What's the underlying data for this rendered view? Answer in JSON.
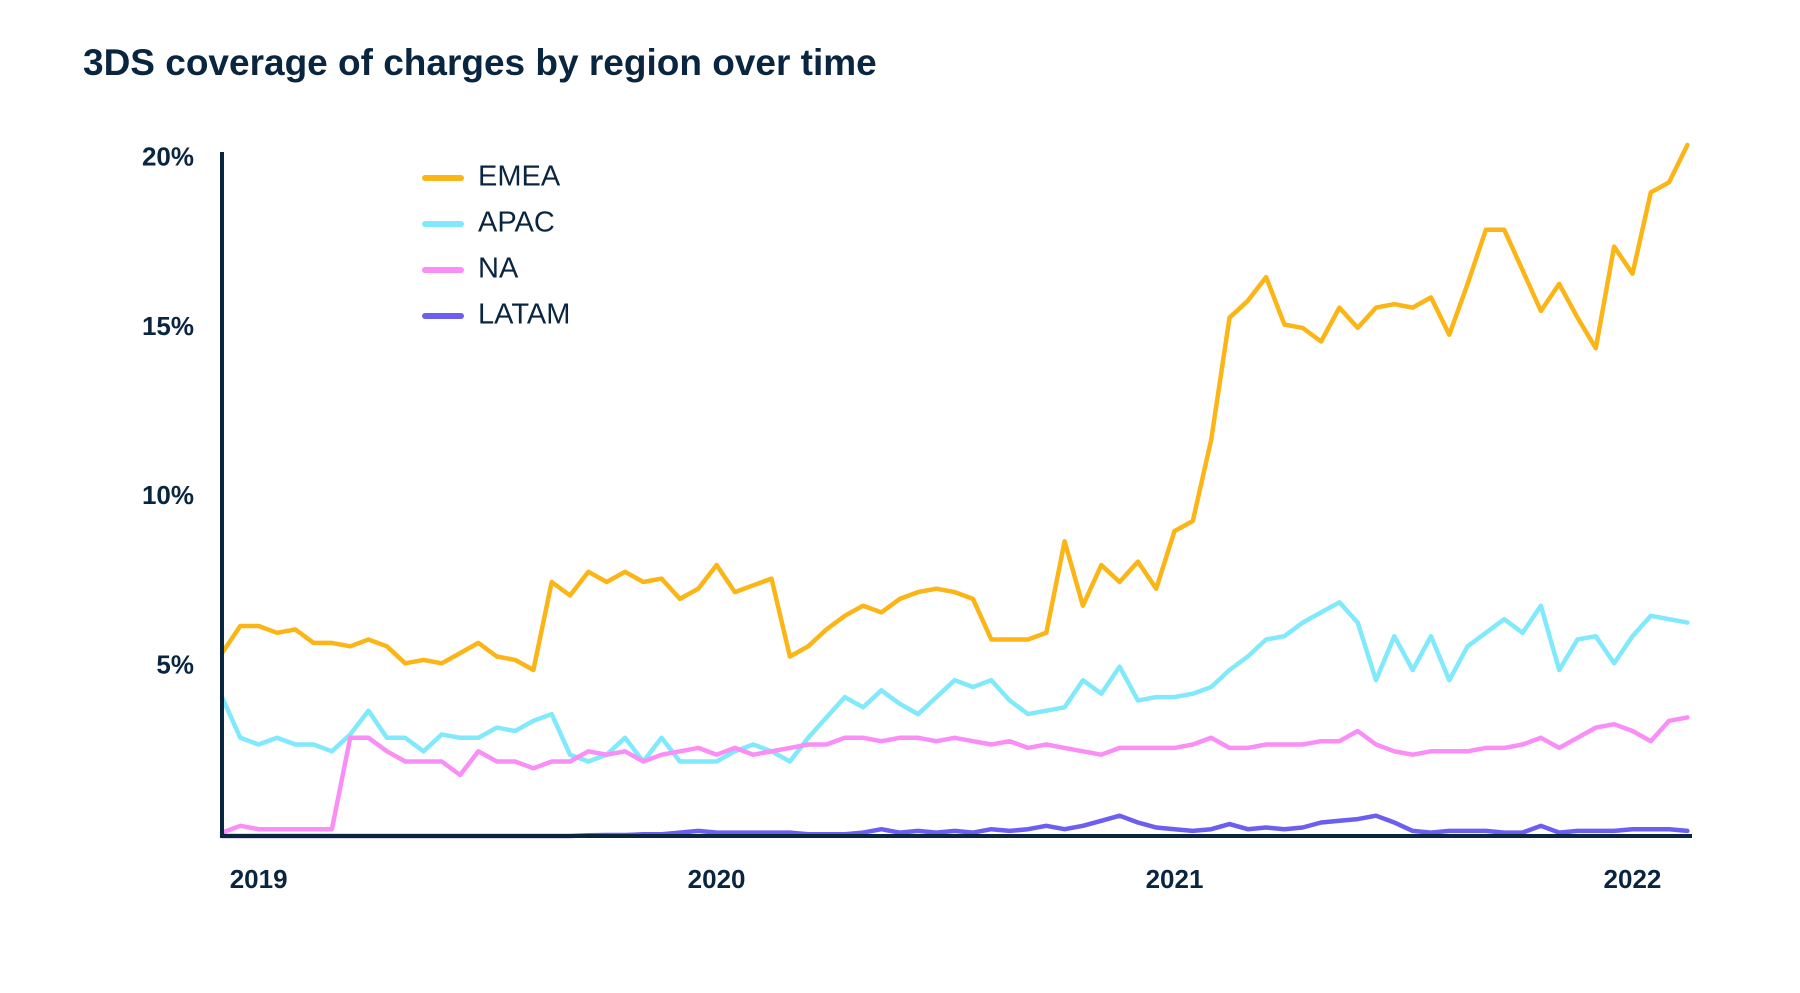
{
  "chart_data": {
    "type": "line",
    "title": "3DS coverage of charges by region over time",
    "x": [
      2018.92,
      2018.96,
      2019.0,
      2019.04,
      2019.08,
      2019.12,
      2019.16,
      2019.2,
      2019.24,
      2019.28,
      2019.32,
      2019.36,
      2019.4,
      2019.44,
      2019.48,
      2019.52,
      2019.56,
      2019.6,
      2019.64,
      2019.68,
      2019.72,
      2019.76,
      2019.8,
      2019.84,
      2019.88,
      2019.92,
      2019.96,
      2020.0,
      2020.04,
      2020.08,
      2020.12,
      2020.16,
      2020.2,
      2020.24,
      2020.28,
      2020.32,
      2020.36,
      2020.4,
      2020.44,
      2020.48,
      2020.52,
      2020.56,
      2020.6,
      2020.64,
      2020.68,
      2020.72,
      2020.76,
      2020.8,
      2020.84,
      2020.88,
      2020.92,
      2020.96,
      2021.0,
      2021.04,
      2021.08,
      2021.12,
      2021.16,
      2021.2,
      2021.24,
      2021.28,
      2021.32,
      2021.36,
      2021.4,
      2021.44,
      2021.48,
      2021.52,
      2021.56,
      2021.6,
      2021.64,
      2021.68,
      2021.72,
      2021.76,
      2021.8,
      2021.84,
      2021.88,
      2021.92,
      2021.96,
      2022.0,
      2022.04,
      2022.08,
      2022.12
    ],
    "series": [
      {
        "name": "EMEA",
        "color": "#fbb516",
        "values": [
          5.4,
          6.2,
          6.2,
          6.0,
          6.1,
          5.7,
          5.7,
          5.6,
          5.8,
          5.6,
          5.1,
          5.2,
          5.1,
          5.4,
          5.7,
          5.3,
          5.2,
          4.9,
          7.5,
          7.1,
          7.8,
          7.5,
          7.8,
          7.5,
          7.6,
          7.0,
          7.3,
          8.0,
          7.2,
          7.4,
          7.6,
          5.3,
          5.6,
          6.1,
          6.5,
          6.8,
          6.6,
          7.0,
          7.2,
          7.3,
          7.2,
          7.0,
          5.8,
          5.8,
          5.8,
          6.0,
          8.7,
          6.8,
          8.0,
          7.5,
          8.1,
          7.3,
          9.0,
          9.3,
          11.7,
          15.3,
          15.8,
          16.5,
          15.1,
          15.0,
          14.6,
          15.6,
          15.0,
          15.6,
          15.7,
          15.6,
          15.9,
          14.8,
          16.3,
          17.9,
          17.9,
          16.7,
          15.5,
          16.3,
          15.3,
          14.4,
          17.4,
          16.6,
          19.0,
          19.3,
          20.4
        ]
      },
      {
        "name": "APAC",
        "color": "#80e9fb",
        "values": [
          4.1,
          2.9,
          2.7,
          2.9,
          2.7,
          2.7,
          2.5,
          3.0,
          3.7,
          2.9,
          2.9,
          2.5,
          3.0,
          2.9,
          2.9,
          3.2,
          3.1,
          3.4,
          3.6,
          2.4,
          2.2,
          2.4,
          2.9,
          2.2,
          2.9,
          2.2,
          2.2,
          2.2,
          2.5,
          2.7,
          2.5,
          2.2,
          2.9,
          3.5,
          4.1,
          3.8,
          4.3,
          3.9,
          3.6,
          4.1,
          4.6,
          4.4,
          4.6,
          4.0,
          3.6,
          3.7,
          3.8,
          4.6,
          4.2,
          5.0,
          4.0,
          4.1,
          4.1,
          4.2,
          4.4,
          4.9,
          5.3,
          5.8,
          5.9,
          6.3,
          6.6,
          6.9,
          6.3,
          4.6,
          5.9,
          4.9,
          5.9,
          4.6,
          5.6,
          6.0,
          6.4,
          6.0,
          6.8,
          4.9,
          5.8,
          5.9,
          5.1,
          5.9,
          6.5,
          6.4,
          6.3
        ]
      },
      {
        "name": "NA",
        "color": "#f98ef7",
        "values": [
          0.1,
          0.3,
          0.2,
          0.2,
          0.2,
          0.2,
          0.2,
          2.9,
          2.9,
          2.5,
          2.2,
          2.2,
          2.2,
          1.8,
          2.5,
          2.2,
          2.2,
          2.0,
          2.2,
          2.2,
          2.5,
          2.4,
          2.5,
          2.2,
          2.4,
          2.5,
          2.6,
          2.4,
          2.6,
          2.4,
          2.5,
          2.6,
          2.7,
          2.7,
          2.9,
          2.9,
          2.8,
          2.9,
          2.9,
          2.8,
          2.9,
          2.8,
          2.7,
          2.8,
          2.6,
          2.7,
          2.6,
          2.5,
          2.4,
          2.6,
          2.6,
          2.6,
          2.6,
          2.7,
          2.9,
          2.6,
          2.6,
          2.7,
          2.7,
          2.7,
          2.8,
          2.8,
          3.1,
          2.7,
          2.5,
          2.4,
          2.5,
          2.5,
          2.5,
          2.6,
          2.6,
          2.7,
          2.9,
          2.6,
          2.9,
          3.2,
          3.3,
          3.1,
          2.8,
          3.4,
          3.5
        ]
      },
      {
        "name": "LATAM",
        "color": "#6c5ff0",
        "values": [
          0,
          0,
          0,
          0,
          0,
          0,
          0,
          0,
          0,
          0,
          0,
          0,
          0,
          0,
          0,
          0,
          0,
          0,
          0,
          0,
          0.02,
          0.03,
          0.03,
          0.05,
          0.05,
          0.1,
          0.15,
          0.1,
          0.1,
          0.1,
          0.1,
          0.1,
          0.05,
          0.05,
          0.05,
          0.1,
          0.2,
          0.1,
          0.15,
          0.1,
          0.15,
          0.1,
          0.2,
          0.15,
          0.2,
          0.3,
          0.2,
          0.3,
          0.45,
          0.6,
          0.4,
          0.25,
          0.2,
          0.15,
          0.2,
          0.35,
          0.2,
          0.25,
          0.2,
          0.25,
          0.4,
          0.45,
          0.5,
          0.6,
          0.4,
          0.15,
          0.1,
          0.15,
          0.15,
          0.15,
          0.1,
          0.1,
          0.3,
          0.1,
          0.15,
          0.15,
          0.15,
          0.2,
          0.2,
          0.2,
          0.15
        ]
      }
    ],
    "xlim": [
      2018.92,
      2022.13
    ],
    "xticks": [
      2019,
      2020,
      2021,
      2022
    ],
    "ylim": [
      0,
      20.4
    ],
    "yticks": [
      {
        "value": 5,
        "label": "5%"
      },
      {
        "value": 10,
        "label": "10%"
      },
      {
        "value": 15,
        "label": "15%"
      },
      {
        "value": 20,
        "label": "20%"
      }
    ],
    "grid": false,
    "legend": "upper left"
  }
}
